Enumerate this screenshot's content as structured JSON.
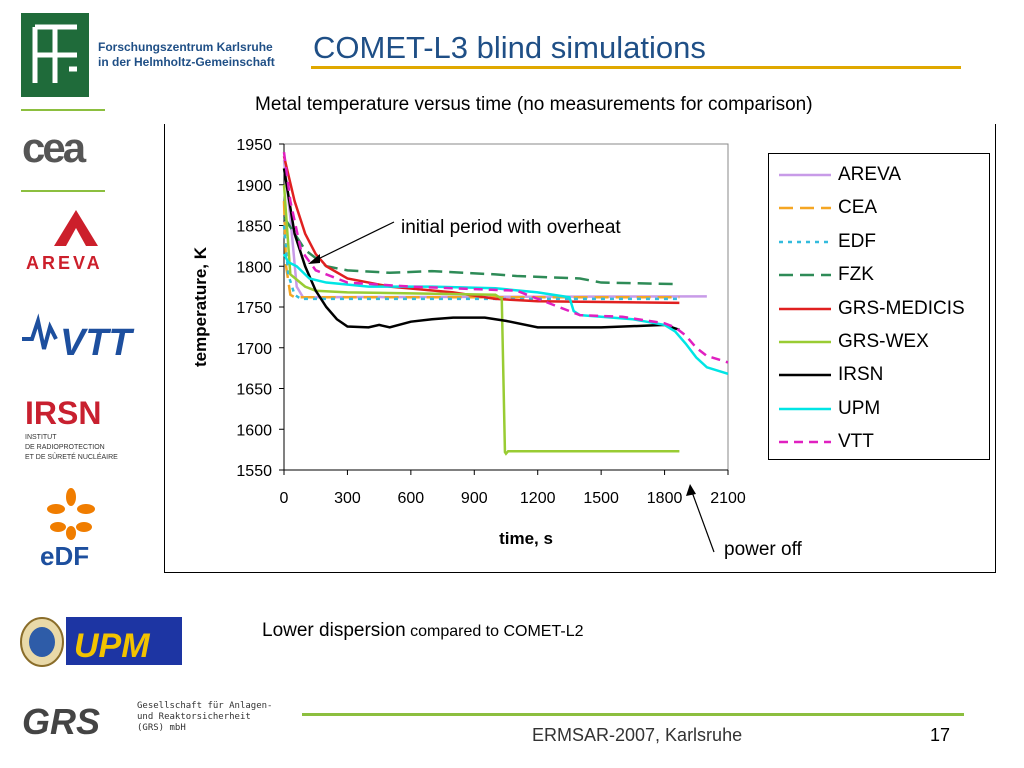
{
  "header": {
    "institute_line1": "Forschungszentrum Karlsruhe",
    "institute_line2": "in der Helmholtz-Gemeinschaft",
    "title": "COMET-L3 blind simulations"
  },
  "subtitle": "Metal temperature versus time (no measurements for comparison)",
  "logos": {
    "cea": "cea",
    "areva": "AREVA",
    "vtt": "VTT",
    "irsn": "IRSN",
    "irsn_sub": [
      "INSTITUT",
      "DE RADIOPROTECTION",
      "ET DE SÛRETÉ NUCLÉAIRE"
    ],
    "edf": "eDF",
    "upm": "UPM",
    "grs": "GRS"
  },
  "colors": {
    "title_blue": "#1f4f86",
    "rule_gold": "#e0a800",
    "rule_green": "#8cbf3f"
  },
  "chart_data": {
    "type": "line",
    "xlabel": "time, s",
    "ylabel": "temperature, K",
    "xlim": [
      0,
      2100
    ],
    "ylim": [
      1550,
      1950
    ],
    "xticks": [
      0,
      300,
      600,
      900,
      1200,
      1500,
      1800,
      2100
    ],
    "yticks": [
      1550,
      1600,
      1650,
      1700,
      1750,
      1800,
      1850,
      1900,
      1950
    ],
    "grid": false,
    "legend_position": "right",
    "series": [
      {
        "name": "AREVA",
        "color": "#c89be8",
        "dash": "solid",
        "x": [
          0,
          30,
          60,
          90,
          2000
        ],
        "y": [
          1930,
          1860,
          1775,
          1762,
          1763
        ]
      },
      {
        "name": "CEA",
        "color": "#f5a623",
        "dash": "long",
        "x": [
          0,
          10,
          30,
          50,
          1870
        ],
        "y": [
          1880,
          1800,
          1765,
          1762,
          1762
        ]
      },
      {
        "name": "EDF",
        "color": "#33bbdd",
        "dash": "dot",
        "x": [
          0,
          20,
          50,
          80,
          1870
        ],
        "y": [
          1850,
          1790,
          1765,
          1760,
          1760
        ]
      },
      {
        "name": "FZK",
        "color": "#2e8b57",
        "dash": "long",
        "x": [
          0,
          100,
          200,
          300,
          500,
          700,
          1000,
          1100,
          1400,
          1500,
          1870
        ],
        "y": [
          1860,
          1820,
          1800,
          1795,
          1792,
          1794,
          1790,
          1788,
          1785,
          1780,
          1778
        ]
      },
      {
        "name": "GRS-MEDICIS",
        "color": "#e02020",
        "dash": "solid",
        "x": [
          0,
          50,
          100,
          150,
          200,
          300,
          500,
          800,
          1000,
          1200,
          1870
        ],
        "y": [
          1935,
          1880,
          1840,
          1815,
          1800,
          1785,
          1775,
          1768,
          1760,
          1757,
          1755
        ]
      },
      {
        "name": "GRS-WEX",
        "color": "#99cc33",
        "dash": "solid",
        "x": [
          0,
          30,
          100,
          150,
          300,
          1000,
          1030,
          1045,
          1050,
          1060,
          1870
        ],
        "y": [
          1900,
          1790,
          1775,
          1770,
          1768,
          1765,
          1760,
          1572,
          1570,
          1573,
          1573
        ]
      },
      {
        "name": "IRSN",
        "color": "#000000",
        "dash": "solid",
        "x": [
          0,
          50,
          100,
          150,
          200,
          250,
          300,
          400,
          450,
          500,
          600,
          700,
          800,
          950,
          1050,
          1200,
          1500,
          1800,
          1870
        ],
        "y": [
          1920,
          1840,
          1800,
          1770,
          1750,
          1735,
          1726,
          1725,
          1728,
          1725,
          1732,
          1735,
          1737,
          1737,
          1733,
          1725,
          1725,
          1728,
          1722
        ]
      },
      {
        "name": "UPM",
        "color": "#00e5e5",
        "dash": "solid",
        "x": [
          0,
          20,
          60,
          120,
          200,
          400,
          700,
          1000,
          1200,
          1350,
          1370,
          1400,
          1500,
          1650,
          1800,
          1850,
          1900,
          1950,
          2000,
          2100
        ],
        "y": [
          1815,
          1805,
          1800,
          1785,
          1780,
          1775,
          1775,
          1773,
          1768,
          1762,
          1745,
          1740,
          1738,
          1735,
          1728,
          1720,
          1705,
          1688,
          1676,
          1668
        ]
      },
      {
        "name": "VTT",
        "color": "#e020c0",
        "dash": "mid",
        "x": [
          0,
          30,
          80,
          150,
          300,
          600,
          900,
          1100,
          1200,
          1400,
          1600,
          1800,
          1850,
          1900,
          1950,
          2000,
          2100
        ],
        "y": [
          1940,
          1880,
          1820,
          1795,
          1780,
          1775,
          1772,
          1770,
          1760,
          1740,
          1738,
          1730,
          1725,
          1715,
          1700,
          1690,
          1682
        ]
      }
    ],
    "annotations": [
      {
        "text": "initial period with overheat"
      },
      {
        "text": "power off"
      }
    ]
  },
  "notes": {
    "lower_main": "Lower dispersion",
    "lower_small": " compared to COMET-L2"
  },
  "footer": {
    "grs_line1": "Gesellschaft für Anlagen-",
    "grs_line2": "und Reaktorsicherheit",
    "grs_line3": "(GRS) mbH",
    "event": "ERMSAR-2007, Karlsruhe",
    "page": "17"
  }
}
